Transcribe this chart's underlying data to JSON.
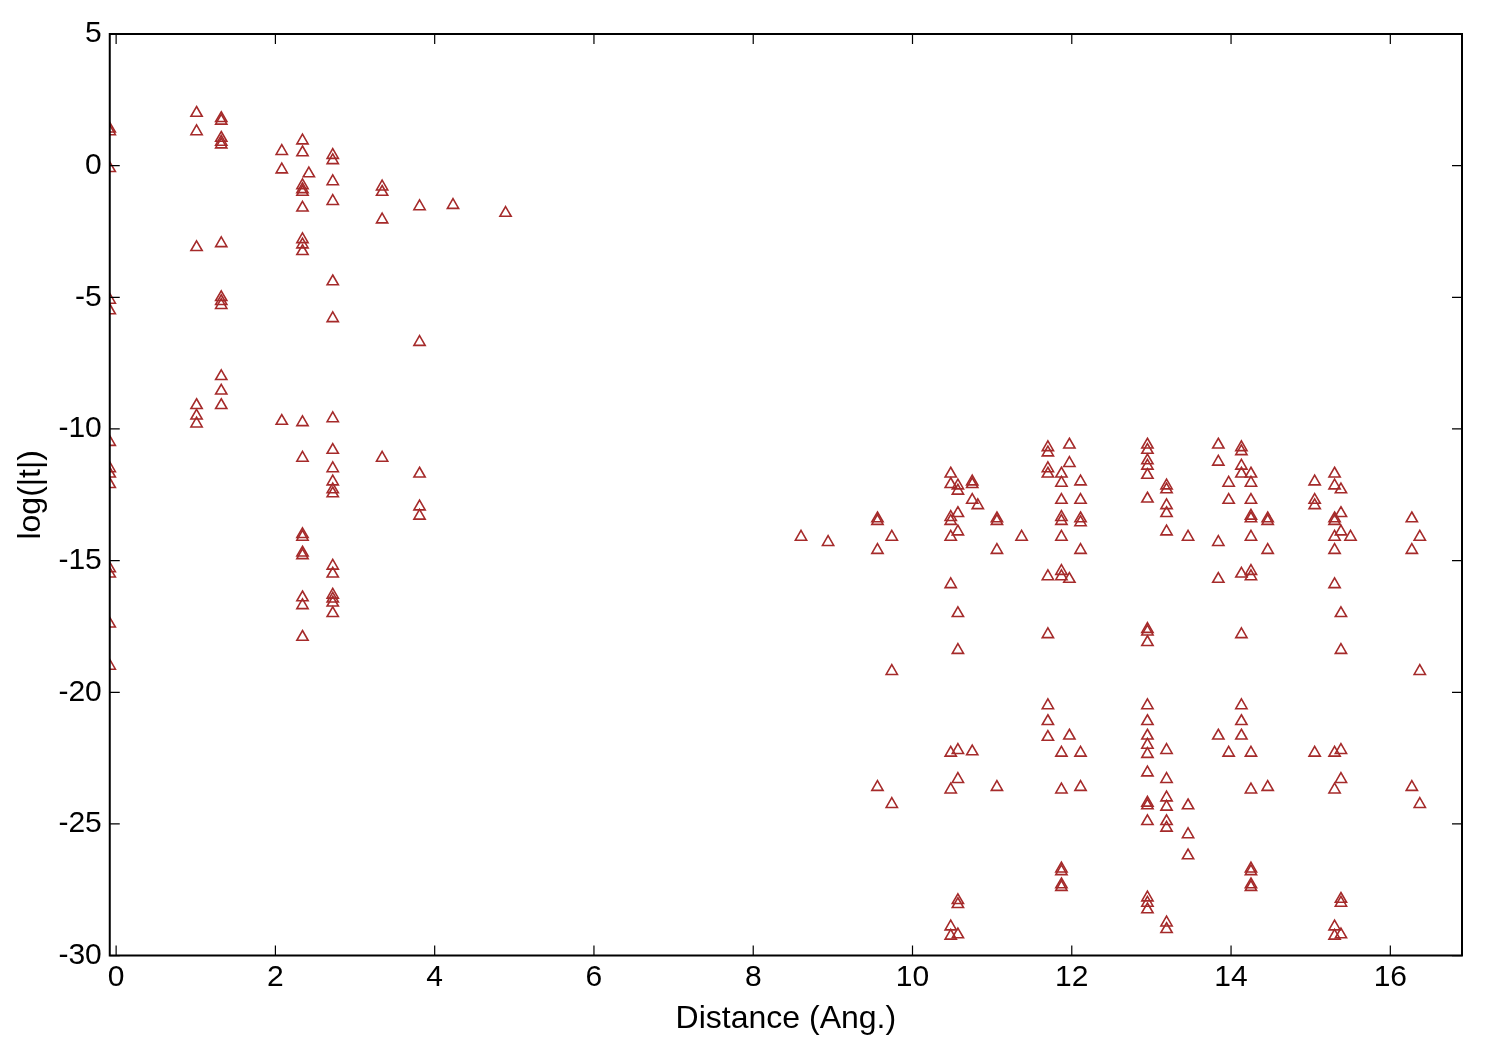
{
  "chart_data": {
    "type": "scatter",
    "xlabel": "Distance (Ang.)",
    "ylabel": "log(|t|)",
    "xlim": [
      -0.08,
      16.9
    ],
    "ylim": [
      -30,
      5
    ],
    "xticks": [
      0,
      2,
      4,
      6,
      8,
      10,
      12,
      14,
      16
    ],
    "yticks": [
      -30,
      -25,
      -20,
      -15,
      -10,
      -5,
      0,
      5
    ],
    "grid": false,
    "legend": false,
    "marker": "triangle",
    "series": [
      {
        "color": "#a52a2a",
        "x": [
          -0.08,
          -0.08,
          -0.08,
          -0.08,
          -0.08,
          -0.08,
          -0.08,
          -0.08,
          -0.08,
          -0.08,
          -0.08,
          -0.08,
          -0.08,
          1.01,
          1.01,
          1.01,
          1.01,
          1.01,
          1.01,
          1.32,
          1.32,
          1.32,
          1.32,
          1.32,
          1.32,
          1.32,
          1.32,
          1.32,
          1.32,
          1.32,
          1.32,
          2.08,
          2.08,
          2.08,
          2.34,
          2.34,
          2.34,
          2.34,
          2.34,
          2.34,
          2.34,
          2.34,
          2.34,
          2.34,
          2.34,
          2.34,
          2.34,
          2.34,
          2.34,
          2.34,
          2.34,
          2.34,
          2.42,
          2.72,
          2.72,
          2.72,
          2.72,
          2.72,
          2.72,
          2.72,
          2.72,
          2.72,
          2.72,
          2.72,
          2.72,
          2.72,
          2.72,
          2.72,
          2.72,
          2.72,
          2.72,
          3.34,
          3.34,
          3.34,
          3.34,
          3.81,
          3.81,
          3.81,
          3.81,
          3.81,
          4.23,
          4.89,
          8.6,
          8.94,
          9.56,
          9.56,
          9.56,
          9.56,
          9.74,
          9.74,
          9.74,
          10.48,
          10.48,
          10.48,
          10.48,
          10.48,
          10.48,
          10.48,
          10.48,
          10.48,
          10.48,
          10.57,
          10.57,
          10.57,
          10.57,
          10.57,
          10.57,
          10.57,
          10.57,
          10.57,
          10.57,
          10.57,
          10.75,
          10.75,
          10.75,
          10.75,
          10.82,
          11.06,
          11.06,
          11.06,
          11.06,
          11.37,
          11.7,
          11.7,
          11.7,
          11.7,
          11.7,
          11.7,
          11.7,
          11.7,
          11.7,
          11.87,
          11.87,
          11.87,
          11.87,
          11.87,
          11.87,
          11.87,
          11.87,
          11.87,
          11.87,
          11.87,
          11.87,
          11.87,
          11.87,
          11.97,
          11.97,
          11.97,
          11.97,
          12.11,
          12.11,
          12.11,
          12.11,
          12.11,
          12.11,
          12.11,
          12.95,
          12.95,
          12.95,
          12.95,
          12.95,
          12.95,
          12.95,
          12.95,
          12.95,
          12.95,
          12.95,
          12.95,
          12.95,
          12.95,
          12.95,
          12.95,
          12.95,
          12.95,
          12.95,
          12.95,
          12.95,
          13.19,
          13.19,
          13.19,
          13.19,
          13.19,
          13.19,
          13.19,
          13.19,
          13.19,
          13.19,
          13.19,
          13.19,
          13.19,
          13.46,
          13.46,
          13.46,
          13.46,
          13.84,
          13.84,
          13.84,
          13.84,
          13.84,
          13.97,
          13.97,
          13.97,
          14.13,
          14.13,
          14.13,
          14.13,
          14.13,
          14.13,
          14.13,
          14.13,
          14.13,
          14.25,
          14.25,
          14.25,
          14.25,
          14.25,
          14.25,
          14.25,
          14.25,
          14.25,
          14.25,
          14.25,
          14.25,
          14.25,
          14.25,
          14.46,
          14.46,
          14.46,
          14.46,
          15.05,
          15.05,
          15.05,
          15.05,
          15.3,
          15.3,
          15.3,
          15.3,
          15.3,
          15.3,
          15.3,
          15.3,
          15.3,
          15.3,
          15.3,
          15.38,
          15.38,
          15.38,
          15.38,
          15.38,
          15.38,
          15.38,
          15.38,
          15.38,
          15.38,
          15.5,
          16.27,
          16.27,
          16.27,
          16.37,
          16.37,
          16.37
        ],
        "values": [
          1.4,
          1.3,
          -0.1,
          -5.1,
          -5.5,
          -10.5,
          -11.5,
          -11.7,
          -12.1,
          -15.3,
          -15.5,
          -17.4,
          -19.0,
          2.0,
          1.3,
          -3.1,
          -9.1,
          -9.5,
          -9.8,
          1.8,
          1.7,
          1.05,
          0.9,
          0.8,
          -2.95,
          -5.0,
          -5.15,
          -5.3,
          -8.0,
          -8.55,
          -9.1,
          0.55,
          -0.15,
          -9.7,
          0.95,
          0.5,
          -0.75,
          -0.9,
          -1.0,
          -1.6,
          -2.8,
          -3.0,
          -3.25,
          -9.75,
          -11.1,
          -14.0,
          -14.1,
          -14.7,
          -14.8,
          -16.4,
          -16.7,
          -17.9,
          -0.3,
          0.4,
          0.2,
          -0.6,
          -1.35,
          -4.4,
          -5.8,
          -9.6,
          -10.8,
          -11.5,
          -12.0,
          -12.3,
          -12.45,
          -15.2,
          -15.5,
          -16.3,
          -16.45,
          -16.6,
          -17.0,
          -0.8,
          -1.0,
          -2.05,
          -11.1,
          -1.55,
          -6.7,
          -11.7,
          -12.95,
          -13.3,
          -1.5,
          -1.8,
          -14.1,
          -14.3,
          -13.4,
          -13.5,
          -14.6,
          -23.6,
          -14.1,
          -19.2,
          -24.25,
          -11.7,
          -12.1,
          -13.35,
          -13.5,
          -14.1,
          -15.9,
          -22.3,
          -23.7,
          -28.9,
          -29.25,
          -12.15,
          -12.35,
          -13.2,
          -13.9,
          -17.0,
          -18.4,
          -22.2,
          -23.3,
          -27.9,
          -28.05,
          -29.2,
          -12.0,
          -12.1,
          -12.7,
          -22.25,
          -12.9,
          -13.4,
          -13.5,
          -14.6,
          -23.6,
          -14.1,
          -10.7,
          -10.9,
          -11.5,
          -11.7,
          -15.6,
          -17.8,
          -20.5,
          -21.1,
          -21.7,
          -11.7,
          -12.05,
          -12.7,
          -13.35,
          -13.5,
          -14.1,
          -15.4,
          -15.6,
          -22.3,
          -23.7,
          -26.7,
          -26.8,
          -27.3,
          -27.4,
          -10.6,
          -11.3,
          -15.7,
          -21.65,
          -12.0,
          -12.7,
          -13.4,
          -13.55,
          -14.6,
          -22.3,
          -23.6,
          -10.6,
          -10.8,
          -11.2,
          -11.4,
          -11.75,
          -12.65,
          -17.6,
          -17.7,
          -18.1,
          -20.5,
          -21.1,
          -21.65,
          -22.0,
          -22.35,
          -23.05,
          -24.2,
          -24.3,
          -24.9,
          -27.8,
          -28.0,
          -28.25,
          -12.15,
          -12.3,
          -12.9,
          -13.2,
          -13.9,
          -22.2,
          -23.3,
          -24.0,
          -24.35,
          -24.9,
          -25.15,
          -28.75,
          -29.0,
          -14.1,
          -24.3,
          -25.4,
          -26.2,
          -10.6,
          -11.25,
          -14.3,
          -15.7,
          -21.65,
          -12.05,
          -12.7,
          -22.3,
          -10.7,
          -10.85,
          -11.4,
          -11.7,
          -15.5,
          -17.8,
          -20.5,
          -21.1,
          -21.65,
          -11.7,
          -12.05,
          -12.7,
          -13.3,
          -13.4,
          -14.1,
          -15.4,
          -15.6,
          -22.3,
          -23.7,
          -26.7,
          -26.8,
          -27.3,
          -27.4,
          -13.4,
          -13.5,
          -14.6,
          -23.6,
          -12.0,
          -12.7,
          -12.9,
          -22.3,
          -11.7,
          -12.15,
          -13.4,
          -13.5,
          -14.1,
          -14.6,
          -15.9,
          -22.3,
          -23.7,
          -28.9,
          -29.25,
          -12.3,
          -13.2,
          -13.9,
          -17.0,
          -18.4,
          -22.2,
          -23.3,
          -27.85,
          -28.0,
          -29.2,
          -14.1,
          -13.4,
          -14.6,
          -23.6,
          -14.1,
          -19.2,
          -24.25
        ]
      }
    ]
  }
}
